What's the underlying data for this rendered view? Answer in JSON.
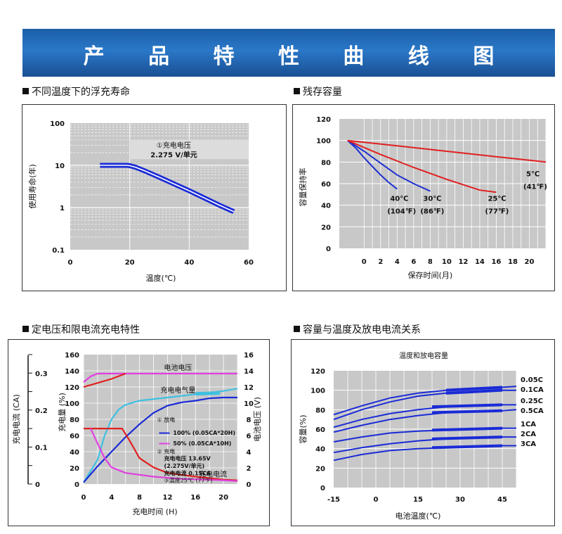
{
  "banner": {
    "title": "产 品 特 性 曲 线 图"
  },
  "sections": {
    "life": "不同温度下的浮充寿命",
    "retention": "残存容量",
    "charge": "定电压和限电流充电特性",
    "capacity": "容量与温度及放电电流关系"
  },
  "chart_data": [
    {
      "id": "float-life",
      "type": "line",
      "title": "",
      "xlabel": "温度(℃)",
      "ylabel": "使用寿命(年)",
      "yscale": "log",
      "xlim": [
        0,
        60
      ],
      "ylim": [
        0.1,
        100
      ],
      "x_ticks": [
        "0",
        "20",
        "40",
        "60"
      ],
      "y_ticks": [
        "0.1",
        "1",
        "10",
        "100"
      ],
      "grid": true,
      "annotation": {
        "line1": "①充电电压",
        "line2": "2.275 V/单元"
      },
      "series": [
        {
          "color": "#1a2bd6",
          "points": [
            [
              10,
              10
            ],
            [
              13,
              10
            ],
            [
              16,
              10
            ],
            [
              19,
              10
            ],
            [
              20,
              9.8
            ],
            [
              22,
              9.0
            ],
            [
              25,
              7.4
            ],
            [
              30,
              5.2
            ],
            [
              35,
              3.6
            ],
            [
              40,
              2.5
            ],
            [
              45,
              1.7
            ],
            [
              50,
              1.15
            ],
            [
              55,
              0.8
            ]
          ]
        }
      ]
    },
    {
      "id": "residual-capacity",
      "type": "line",
      "title": "",
      "xlabel": "保存时间(月)",
      "ylabel": "容量保持率",
      "xlim": [
        -3,
        22
      ],
      "ylim": [
        0,
        120
      ],
      "x_ticks": [
        "0",
        "2",
        "4",
        "6",
        "8",
        "10",
        "12",
        "14",
        "16",
        "18",
        "20"
      ],
      "y_ticks": [
        "0",
        "20",
        "40",
        "60",
        "80",
        "100",
        "120"
      ],
      "grid": true,
      "series": [
        {
          "label1": "40℃",
          "label2": "(104℉)",
          "color": "#2030d0",
          "points": [
            [
              -2,
              100
            ],
            [
              -1,
              93
            ],
            [
              0,
              84
            ],
            [
              1,
              76
            ],
            [
              2,
              68
            ],
            [
              3,
              61
            ],
            [
              4,
              55
            ]
          ]
        },
        {
          "label1": "30℃",
          "label2": "(86℉)",
          "color": "#2030d0",
          "points": [
            [
              -2,
              100
            ],
            [
              0,
              90
            ],
            [
              2,
              79
            ],
            [
              4,
              68
            ],
            [
              6,
              60
            ],
            [
              8,
              53
            ]
          ]
        },
        {
          "label1": "25℃",
          "label2": "(77℉)",
          "color": "#e02020",
          "points": [
            [
              -2,
              100
            ],
            [
              2,
              87
            ],
            [
              6,
              75
            ],
            [
              10,
              64
            ],
            [
              14,
              54
            ],
            [
              16,
              52
            ]
          ]
        },
        {
          "label1": "5℃",
          "label2": "(41℉)",
          "color": "#e02020",
          "points": [
            [
              -2,
              100
            ],
            [
              4,
              95
            ],
            [
              10,
              90
            ],
            [
              16,
              85
            ],
            [
              22,
              80
            ]
          ]
        }
      ]
    },
    {
      "id": "charge-characteristics",
      "type": "line",
      "title": "",
      "xlabel": "充电时间 (H)",
      "ylabel_left": "充电电流 (CA)",
      "ylabel_mid": "充电量 (%)",
      "ylabel_right": "电池电压 (V)",
      "xlim": [
        0,
        22
      ],
      "ylim_pct": [
        0,
        160
      ],
      "ylim_ca": [
        0,
        0.35
      ],
      "ylim_v": [
        0,
        16
      ],
      "x_ticks": [
        "0",
        "4",
        "8",
        "12",
        "16",
        "20"
      ],
      "pct_ticks": [
        "0",
        "20",
        "40",
        "60",
        "80",
        "100",
        "120",
        "140",
        "160"
      ],
      "ca_ticks": [
        "0",
        "0.1",
        "0.2",
        "0.3"
      ],
      "v_ticks": [
        "0",
        "2",
        "4",
        "6",
        "8",
        "10",
        "12",
        "14",
        "16"
      ],
      "grid": true,
      "labels": {
        "voltage": "电池电压",
        "charged": "充电电气量",
        "current": "充电电流",
        "legend_head": "① 放电",
        "legend_100": "100% (0.05CA*20H)",
        "legend_50": "50% (0.05CA*10H)",
        "note2_a": "② 充电",
        "note2_b": "充电电压 13.65V",
        "note2_c": "(2.275V/单元)",
        "note2_d": "充电电流 0.15CA",
        "note3": "③温度25℃ (77℉)"
      },
      "series": [
        {
          "name": "电池电压",
          "color": "#e040e0",
          "axis": "v",
          "points": [
            [
              0,
              12.6
            ],
            [
              1,
              13.3
            ],
            [
              2,
              13.65
            ],
            [
              22,
              13.65
            ]
          ]
        },
        {
          "name": "",
          "color": "#e02020",
          "axis": "v",
          "points": [
            [
              0,
              12.0
            ],
            [
              2,
              12.5
            ],
            [
              4,
              13.0
            ],
            [
              6,
              13.65
            ]
          ]
        },
        {
          "name": "充电电气量",
          "color": "#40c0e0",
          "axis": "pct",
          "points": [
            [
              0,
              2
            ],
            [
              2,
              30
            ],
            [
              3,
              60
            ],
            [
              4,
              80
            ],
            [
              5,
              92
            ],
            [
              6,
              98
            ],
            [
              8,
              103
            ],
            [
              12,
              107
            ],
            [
              16,
              111
            ],
            [
              20,
              115
            ],
            [
              22,
              118
            ]
          ]
        },
        {
          "name": "",
          "color": "#1a2bd6",
          "axis": "pct",
          "points": [
            [
              0,
              2
            ],
            [
              2,
              22
            ],
            [
              4,
              40
            ],
            [
              6,
              58
            ],
            [
              8,
              74
            ],
            [
              10,
              88
            ],
            [
              12,
              97
            ],
            [
              14,
              101
            ],
            [
              16,
              103
            ],
            [
              18,
              106
            ],
            [
              20,
              107
            ],
            [
              22,
              107
            ]
          ]
        },
        {
          "name": "充电电流",
          "color": "#e02020",
          "axis": "ca",
          "points": [
            [
              0,
              0.15
            ],
            [
              5.5,
              0.15
            ],
            [
              6.5,
              0.12
            ],
            [
              8,
              0.07
            ],
            [
              10,
              0.045
            ],
            [
              12,
              0.03
            ],
            [
              16,
              0.02
            ],
            [
              20,
              0.012
            ],
            [
              22,
              0.01
            ]
          ]
        },
        {
          "name": "",
          "color": "#e040e0",
          "axis": "ca",
          "points": [
            [
              1,
              0.15
            ],
            [
              2,
              0.11
            ],
            [
              3,
              0.07
            ],
            [
              4,
              0.045
            ],
            [
              6,
              0.03
            ],
            [
              10,
              0.02
            ],
            [
              14,
              0.014
            ],
            [
              20,
              0.01
            ],
            [
              22,
              0.008
            ]
          ]
        }
      ]
    },
    {
      "id": "capacity-temperature",
      "type": "line",
      "title": "温度和放电容量",
      "xlabel": "电池温度(℃)",
      "ylabel": "容量(%)",
      "xlim": [
        -15,
        50
      ],
      "ylim": [
        0,
        120
      ],
      "x_ticks": [
        "-15",
        "0",
        "15",
        "30",
        "45"
      ],
      "y_ticks": [
        "0",
        "20",
        "40",
        "60",
        "80",
        "100",
        "120"
      ],
      "grid": true,
      "series": [
        {
          "name": "0.05C",
          "color": "#1a2bd6",
          "points": [
            [
              -15,
              75
            ],
            [
              -5,
              84
            ],
            [
              5,
              92
            ],
            [
              15,
              97
            ],
            [
              25,
              100
            ],
            [
              35,
              102
            ],
            [
              45,
              103
            ],
            [
              50,
              104
            ]
          ]
        },
        {
          "name": "0.1CA",
          "color": "#1a2bd6",
          "points": [
            [
              -15,
              70
            ],
            [
              -5,
              80
            ],
            [
              5,
              88
            ],
            [
              15,
              94
            ],
            [
              25,
              97
            ],
            [
              35,
              99
            ],
            [
              45,
              100
            ],
            [
              50,
              100
            ]
          ]
        },
        {
          "name": "0.25C",
          "color": "#1a2bd6",
          "points": [
            [
              -15,
              62
            ],
            [
              -5,
              70
            ],
            [
              5,
              76
            ],
            [
              15,
              80
            ],
            [
              25,
              83
            ],
            [
              35,
              84
            ],
            [
              45,
              85
            ],
            [
              50,
              85
            ]
          ]
        },
        {
          "name": "0.5CA",
          "color": "#1a2bd6",
          "points": [
            [
              -15,
              57
            ],
            [
              -5,
              64
            ],
            [
              5,
              70
            ],
            [
              15,
              74
            ],
            [
              25,
              77
            ],
            [
              35,
              78
            ],
            [
              45,
              79
            ],
            [
              50,
              80
            ]
          ]
        },
        {
          "name": "1CA",
          "color": "#1a2bd6",
          "points": [
            [
              -15,
              47
            ],
            [
              -5,
              52
            ],
            [
              5,
              56
            ],
            [
              15,
              58
            ],
            [
              25,
              59
            ],
            [
              35,
              60
            ],
            [
              45,
              61
            ],
            [
              50,
              61
            ]
          ]
        },
        {
          "name": "2CA",
          "color": "#1a2bd6",
          "points": [
            [
              -15,
              36
            ],
            [
              -5,
              41
            ],
            [
              5,
              45
            ],
            [
              15,
              48
            ],
            [
              25,
              50
            ],
            [
              35,
              51
            ],
            [
              45,
              52
            ],
            [
              50,
              52
            ]
          ]
        },
        {
          "name": "3CA",
          "color": "#1a2bd6",
          "points": [
            [
              -15,
              28
            ],
            [
              -5,
              34
            ],
            [
              5,
              38
            ],
            [
              15,
              40
            ],
            [
              25,
              41
            ],
            [
              35,
              42
            ],
            [
              45,
              43
            ],
            [
              50,
              43
            ]
          ]
        }
      ]
    }
  ]
}
